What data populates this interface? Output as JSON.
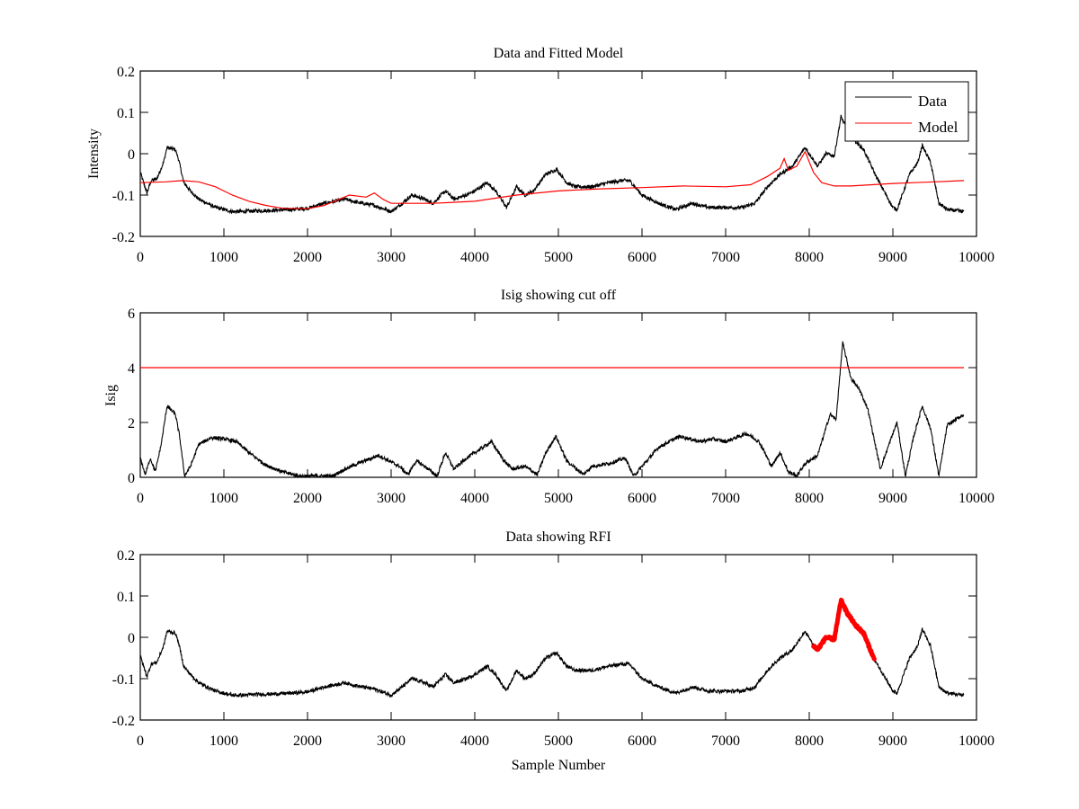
{
  "figure": {
    "background": "#ffffff",
    "colors": {
      "data": "#000000",
      "model": "#ff0000",
      "cutoff": "#ff0000",
      "rfi": "#ff0000"
    }
  },
  "chart_data": [
    {
      "type": "line",
      "title": "Data and Fitted Model",
      "xlabel": "",
      "ylabel": "Intensity",
      "xlim": [
        0,
        10000
      ],
      "ylim": [
        -0.2,
        0.2
      ],
      "xticks": [
        0,
        1000,
        2000,
        3000,
        4000,
        5000,
        6000,
        7000,
        8000,
        9000,
        10000
      ],
      "xtick_labels": [
        "0",
        "1000",
        "2000",
        "3000",
        "4000",
        "5000",
        "6000",
        "7000",
        "8000",
        "9000",
        "10000"
      ],
      "yticks": [
        -0.2,
        -0.1,
        0,
        0.1,
        0.2
      ],
      "ytick_labels": [
        "-0.2",
        "-0.1",
        "0",
        "0.1",
        "0.2"
      ],
      "grid": false,
      "legend": {
        "placement": "top-right",
        "entries": [
          "Data",
          "Model"
        ]
      },
      "series": [
        {
          "name": "Data",
          "color": "#000000",
          "noisy": true,
          "x": [
            0,
            80,
            130,
            200,
            280,
            320,
            420,
            460,
            520,
            600,
            700,
            800,
            900,
            1000,
            1100,
            1200,
            1400,
            1600,
            1800,
            2000,
            2200,
            2450,
            2600,
            2800,
            3000,
            3100,
            3250,
            3400,
            3500,
            3650,
            3750,
            3900,
            4000,
            4150,
            4250,
            4380,
            4500,
            4600,
            4700,
            4850,
            4980,
            5100,
            5200,
            5400,
            5600,
            5750,
            5850,
            6000,
            6200,
            6400,
            6600,
            6800,
            7000,
            7200,
            7350,
            7500,
            7650,
            7800,
            7950,
            8100,
            8200,
            8300,
            8380,
            8450,
            8550,
            8650,
            8800,
            9000,
            9050,
            9200,
            9300,
            9350,
            9450,
            9550,
            9650,
            9850
          ],
          "y": [
            -0.045,
            -0.095,
            -0.065,
            -0.06,
            -0.02,
            0.015,
            0.01,
            -0.015,
            -0.07,
            -0.09,
            -0.11,
            -0.12,
            -0.13,
            -0.135,
            -0.14,
            -0.14,
            -0.138,
            -0.137,
            -0.135,
            -0.132,
            -0.12,
            -0.11,
            -0.118,
            -0.125,
            -0.14,
            -0.125,
            -0.1,
            -0.11,
            -0.12,
            -0.09,
            -0.11,
            -0.1,
            -0.09,
            -0.07,
            -0.09,
            -0.13,
            -0.08,
            -0.1,
            -0.09,
            -0.05,
            -0.038,
            -0.07,
            -0.08,
            -0.08,
            -0.07,
            -0.065,
            -0.065,
            -0.1,
            -0.12,
            -0.135,
            -0.12,
            -0.13,
            -0.13,
            -0.13,
            -0.12,
            -0.08,
            -0.05,
            -0.03,
            0.015,
            -0.03,
            0.0,
            -0.005,
            0.09,
            0.06,
            0.03,
            0.01,
            -0.055,
            -0.13,
            -0.135,
            -0.05,
            -0.02,
            0.02,
            -0.02,
            -0.12,
            -0.135,
            -0.14
          ]
        },
        {
          "name": "Model",
          "color": "#ff0000",
          "noisy": false,
          "x": [
            0,
            300,
            500,
            700,
            900,
            1100,
            1300,
            1500,
            1700,
            2000,
            2200,
            2500,
            2700,
            2800,
            2900,
            3000,
            3500,
            4000,
            4500,
            5000,
            5500,
            6000,
            6500,
            7000,
            7300,
            7500,
            7650,
            7700,
            7750,
            7850,
            7950,
            8050,
            8150,
            8300,
            8500,
            9000,
            9500,
            9850
          ],
          "y": [
            -0.07,
            -0.068,
            -0.065,
            -0.068,
            -0.08,
            -0.1,
            -0.115,
            -0.125,
            -0.132,
            -0.133,
            -0.125,
            -0.1,
            -0.105,
            -0.095,
            -0.11,
            -0.12,
            -0.12,
            -0.115,
            -0.1,
            -0.09,
            -0.085,
            -0.082,
            -0.078,
            -0.08,
            -0.075,
            -0.055,
            -0.035,
            -0.012,
            -0.04,
            -0.03,
            0.005,
            -0.045,
            -0.07,
            -0.078,
            -0.078,
            -0.072,
            -0.068,
            -0.065
          ]
        }
      ]
    },
    {
      "type": "line",
      "title": "Isig showing cut off",
      "xlabel": "",
      "ylabel": "Isig",
      "xlim": [
        0,
        10000
      ],
      "ylim": [
        0,
        6
      ],
      "xticks": [
        0,
        1000,
        2000,
        3000,
        4000,
        5000,
        6000,
        7000,
        8000,
        9000,
        10000
      ],
      "xtick_labels": [
        "0",
        "1000",
        "2000",
        "3000",
        "4000",
        "5000",
        "6000",
        "7000",
        "8000",
        "9000",
        "10000"
      ],
      "yticks": [
        0,
        2,
        4,
        6
      ],
      "ytick_labels": [
        "0",
        "2",
        "4",
        "6"
      ],
      "grid": false,
      "series": [
        {
          "name": "Isig",
          "color": "#000000",
          "noisy": true,
          "x": [
            0,
            60,
            120,
            180,
            250,
            320,
            420,
            470,
            530,
            600,
            700,
            850,
            1000,
            1150,
            1300,
            1500,
            1700,
            1900,
            2100,
            2300,
            2450,
            2600,
            2850,
            3100,
            3200,
            3300,
            3400,
            3550,
            3650,
            3750,
            3900,
            4100,
            4200,
            4350,
            4450,
            4600,
            4750,
            4850,
            4970,
            5100,
            5300,
            5400,
            5600,
            5800,
            5900,
            6000,
            6200,
            6450,
            6700,
            6850,
            7000,
            7250,
            7400,
            7550,
            7650,
            7750,
            7850,
            7950,
            8100,
            8250,
            8320,
            8400,
            8500,
            8600,
            8700,
            8850,
            9000,
            9050,
            9150,
            9250,
            9350,
            9450,
            9550,
            9650,
            9850
          ],
          "y": [
            0.7,
            0.1,
            0.7,
            0.2,
            1.2,
            2.6,
            2.3,
            1.5,
            0.05,
            0.4,
            1.2,
            1.45,
            1.4,
            1.3,
            0.9,
            0.45,
            0.2,
            0.05,
            0.05,
            0.05,
            0.3,
            0.5,
            0.8,
            0.4,
            0.1,
            0.6,
            0.4,
            0.05,
            0.9,
            0.3,
            0.7,
            1.1,
            1.3,
            0.6,
            0.3,
            0.4,
            0.1,
            0.9,
            1.5,
            0.6,
            0.1,
            0.4,
            0.5,
            0.7,
            0.05,
            0.4,
            1.1,
            1.5,
            1.3,
            1.4,
            1.3,
            1.6,
            1.3,
            0.4,
            0.9,
            0.2,
            0.05,
            0.5,
            0.8,
            2.3,
            2.1,
            4.9,
            3.6,
            3.2,
            2.5,
            0.3,
            1.6,
            2.0,
            0.05,
            1.5,
            2.6,
            1.8,
            0.05,
            1.9,
            2.3
          ]
        },
        {
          "name": "Cut off",
          "color": "#ff0000",
          "noisy": false,
          "x": [
            0,
            9850
          ],
          "y": [
            4,
            4
          ]
        }
      ]
    },
    {
      "type": "line",
      "title": "Data showing RFI",
      "xlabel": "Sample Number",
      "ylabel": "",
      "xlim": [
        0,
        10000
      ],
      "ylim": [
        -0.2,
        0.2
      ],
      "xticks": [
        0,
        1000,
        2000,
        3000,
        4000,
        5000,
        6000,
        7000,
        8000,
        9000,
        10000
      ],
      "xtick_labels": [
        "0",
        "1000",
        "2000",
        "3000",
        "4000",
        "5000",
        "6000",
        "7000",
        "8000",
        "9000",
        "10000"
      ],
      "yticks": [
        -0.2,
        -0.1,
        0,
        0.1,
        0.2
      ],
      "ytick_labels": [
        "-0.2",
        "-0.1",
        "0",
        "0.1",
        "0.2"
      ],
      "grid": false,
      "rfi_range": [
        8050,
        8780
      ],
      "series": [
        {
          "name": "Data",
          "color": "#000000",
          "noisy": true,
          "x": [
            0,
            80,
            130,
            200,
            280,
            320,
            420,
            460,
            520,
            600,
            700,
            800,
            900,
            1000,
            1100,
            1200,
            1400,
            1600,
            1800,
            2000,
            2200,
            2450,
            2600,
            2800,
            3000,
            3100,
            3250,
            3400,
            3500,
            3650,
            3750,
            3900,
            4000,
            4150,
            4250,
            4380,
            4500,
            4600,
            4700,
            4850,
            4980,
            5100,
            5200,
            5400,
            5600,
            5750,
            5850,
            6000,
            6200,
            6400,
            6600,
            6800,
            7000,
            7200,
            7350,
            7500,
            7650,
            7800,
            7950,
            8050,
            8100,
            8200,
            8300,
            8380,
            8450,
            8550,
            8650,
            8780,
            8800,
            9000,
            9050,
            9200,
            9300,
            9350,
            9450,
            9550,
            9650,
            9850
          ],
          "y": [
            -0.045,
            -0.095,
            -0.065,
            -0.06,
            -0.02,
            0.015,
            0.01,
            -0.015,
            -0.07,
            -0.09,
            -0.11,
            -0.12,
            -0.13,
            -0.135,
            -0.14,
            -0.14,
            -0.138,
            -0.137,
            -0.135,
            -0.132,
            -0.12,
            -0.11,
            -0.118,
            -0.125,
            -0.14,
            -0.125,
            -0.1,
            -0.11,
            -0.12,
            -0.09,
            -0.11,
            -0.1,
            -0.09,
            -0.07,
            -0.09,
            -0.13,
            -0.08,
            -0.1,
            -0.09,
            -0.05,
            -0.038,
            -0.07,
            -0.08,
            -0.08,
            -0.07,
            -0.065,
            -0.065,
            -0.1,
            -0.12,
            -0.135,
            -0.12,
            -0.13,
            -0.13,
            -0.13,
            -0.12,
            -0.08,
            -0.05,
            -0.03,
            0.015,
            -0.02,
            -0.03,
            0.0,
            -0.005,
            0.09,
            0.06,
            0.03,
            0.01,
            -0.055,
            -0.06,
            -0.13,
            -0.135,
            -0.05,
            -0.02,
            0.02,
            -0.02,
            -0.12,
            -0.135,
            -0.14
          ]
        }
      ]
    }
  ]
}
